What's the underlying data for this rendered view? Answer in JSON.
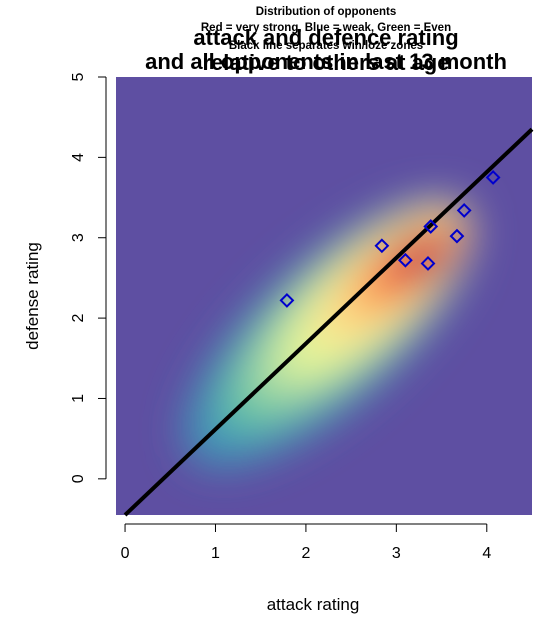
{
  "chart_data": {
    "type": "heatmap",
    "titles": [
      "attack and defence rating",
      "relative to others at age",
      "and all opponents in last 13 month"
    ],
    "subtitles": [
      "Distribution of opponents",
      "Red = very strong, Blue = weak, Green = Even",
      "Black line separates win/loze zones"
    ],
    "xlabel": "attack rating",
    "ylabel": "defense rating",
    "xlim": [
      -0.1,
      4.5
    ],
    "ylim": [
      -0.45,
      5.0
    ],
    "xticks": [
      "0",
      "1",
      "2",
      "3",
      "4"
    ],
    "yticks": [
      "0",
      "1",
      "2",
      "3",
      "4",
      "5"
    ],
    "colors": {
      "background": "#5e4fa2",
      "line": "#000000",
      "points": "#0000cd"
    },
    "density_peak": {
      "x": 3.25,
      "y": 2.75
    },
    "separator_line": {
      "x": [
        0,
        4.5
      ],
      "y": [
        -0.45,
        4.35
      ]
    },
    "points": [
      {
        "x": 1.79,
        "y": 2.22
      },
      {
        "x": 2.84,
        "y": 2.9
      },
      {
        "x": 3.1,
        "y": 2.72
      },
      {
        "x": 3.35,
        "y": 2.68
      },
      {
        "x": 3.38,
        "y": 3.14
      },
      {
        "x": 3.67,
        "y": 3.02
      },
      {
        "x": 3.75,
        "y": 3.34
      },
      {
        "x": 4.07,
        "y": 3.75
      }
    ]
  }
}
